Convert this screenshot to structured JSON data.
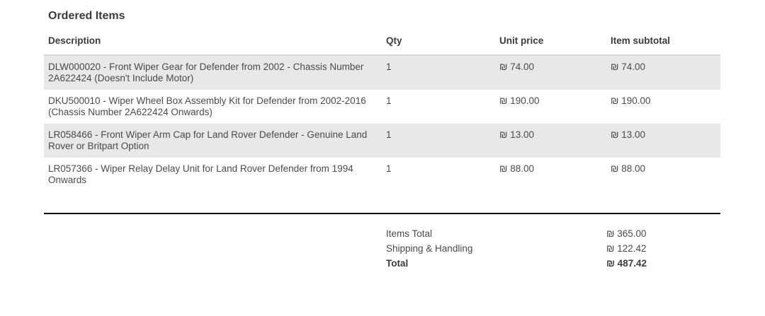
{
  "section": {
    "title": "Ordered Items"
  },
  "table": {
    "columns": [
      "Description",
      "Qty",
      "Unit price",
      "Item subtotal"
    ],
    "rows": [
      {
        "description": "DLW000020 - Front Wiper Gear for Defender from 2002 - Chassis Number 2A622424 (Doesn't Include Motor)",
        "qty": "1",
        "unit_price": "₪ 74.00",
        "subtotal": "₪ 74.00"
      },
      {
        "description": "DKU500010 - Wiper Wheel Box Assembly Kit for Defender from 2002-2016 (Chassis Number 2A622424 Onwards)",
        "qty": "1",
        "unit_price": "₪ 190.00",
        "subtotal": "₪ 190.00"
      },
      {
        "description": "LR058466 - Front Wiper Arm Cap for Land Rover Defender - Genuine Land Rover or Britpart Option",
        "qty": "1",
        "unit_price": "₪ 13.00",
        "subtotal": "₪ 13.00"
      },
      {
        "description": "LR057366 - Wiper Relay Delay Unit for Land Rover Defender from 1994 Onwards",
        "qty": "1",
        "unit_price": "₪ 88.00",
        "subtotal": "₪ 88.00"
      }
    ]
  },
  "totals": {
    "items_total": {
      "label": "Items Total",
      "value": "₪ 365.00"
    },
    "shipping": {
      "label": "Shipping & Handling",
      "value": "₪ 122.42"
    },
    "grand_total": {
      "label": "Total",
      "value": "₪ 487.42"
    }
  },
  "colors": {
    "row_alt_bg": "#e8e8e8",
    "text": "#4a4a4a",
    "heading": "#3b3b3b",
    "divider": "#000000"
  }
}
